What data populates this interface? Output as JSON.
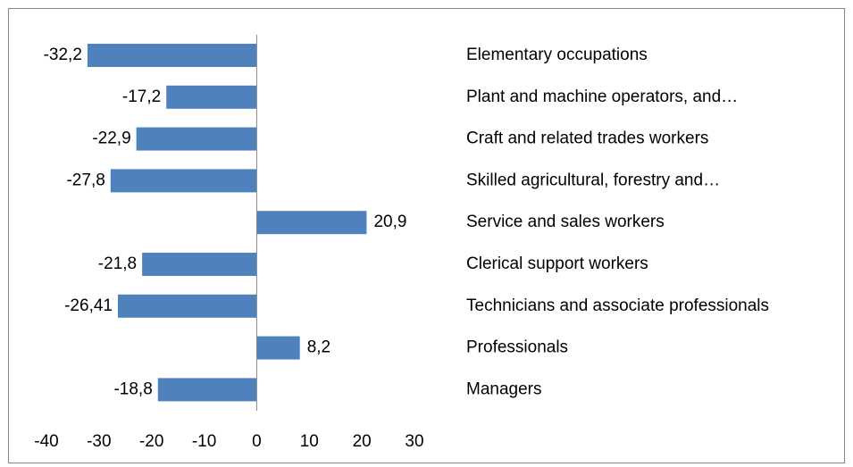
{
  "chart_data": {
    "type": "hbar",
    "categories": [
      "Elementary occupations",
      "Plant and machine operators, and…",
      "Craft and related trades workers",
      "Skilled agricultural, forestry and…",
      "Service and sales workers",
      "Clerical support workers",
      "Technicians and associate professionals",
      "Professionals",
      "Managers"
    ],
    "values": [
      -32.2,
      -17.2,
      -22.9,
      -27.8,
      20.9,
      -21.8,
      -26.41,
      8.2,
      -18.8
    ],
    "value_labels": [
      "-32,2",
      "-17,2",
      "-22,9",
      "-27,8",
      "20,9",
      "-21,8",
      "-26,41",
      "8,2",
      "-18,8"
    ],
    "color": "#4f81bd",
    "xlim": [
      -40,
      30
    ],
    "xticks": [
      -40,
      -30,
      -20,
      -10,
      0,
      10,
      20,
      30
    ]
  }
}
